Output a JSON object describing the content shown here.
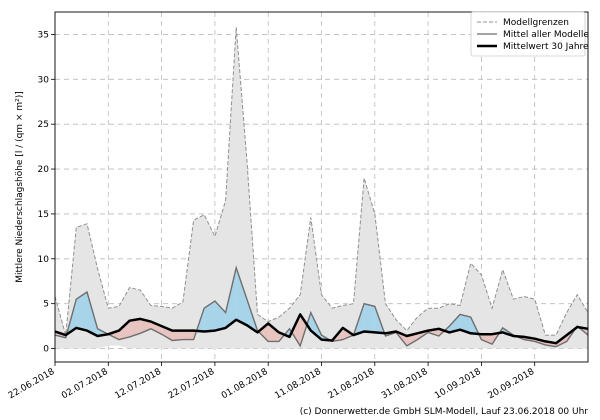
{
  "chart_data": {
    "type": "area",
    "ylabel": "Mittlere Niederschlagshöhe",
    "ylabel_unit": "[l / (qm × m²)]",
    "ylim": [
      -1.5,
      37.5
    ],
    "yticks": [
      0,
      5,
      10,
      15,
      20,
      25,
      30,
      35
    ],
    "grid": true,
    "legend_position": "top-right",
    "x_dates": [
      "22.06.2018",
      "24.06.2018",
      "26.06.2018",
      "28.06.2018",
      "30.06.2018",
      "02.07.2018",
      "04.07.2018",
      "06.07.2018",
      "08.07.2018",
      "10.07.2018",
      "12.07.2018",
      "14.07.2018",
      "16.07.2018",
      "18.07.2018",
      "20.07.2018",
      "22.07.2018",
      "24.07.2018",
      "26.07.2018",
      "28.07.2018",
      "30.07.2018",
      "01.08.2018",
      "03.08.2018",
      "05.08.2018",
      "07.08.2018",
      "09.08.2018",
      "11.08.2018",
      "13.08.2018",
      "15.08.2018",
      "17.08.2018",
      "19.08.2018",
      "21.08.2018",
      "23.08.2018",
      "25.08.2018",
      "27.08.2018",
      "29.08.2018",
      "31.08.2018",
      "02.09.2018",
      "04.09.2018",
      "06.09.2018",
      "08.09.2018",
      "10.09.2018",
      "12.09.2018",
      "14.09.2018",
      "16.09.2018",
      "18.09.2018",
      "20.09.2018",
      "22.09.2018",
      "24.09.2018",
      "26.09.2018",
      "28.09.2018",
      "30.09.2018"
    ],
    "xtick_labels": [
      "22.06.2018",
      "02.07.2018",
      "12.07.2018",
      "22.07.2018",
      "01.08.2018",
      "11.08.2018",
      "21.08.2018",
      "31.08.2018",
      "10.09.2018",
      "20.09.2018"
    ],
    "series": [
      {
        "name": "Modellgrenzen",
        "role": "upper",
        "values": [
          5.8,
          1.5,
          13.5,
          13.9,
          8.9,
          4.5,
          4.7,
          6.8,
          6.5,
          4.8,
          4.7,
          4.5,
          5.2,
          14.3,
          14.9,
          12.5,
          16.5,
          35.8,
          21.0,
          3.8,
          3.0,
          3.5,
          4.5,
          6.0,
          14.6,
          6.0,
          4.5,
          4.8,
          5.0,
          19.0,
          15.0,
          5.0,
          3.2,
          2.0,
          3.5,
          4.5,
          4.5,
          5.0,
          4.8,
          9.5,
          8.2,
          4.5,
          8.8,
          5.5,
          5.8,
          5.5,
          1.5,
          1.5,
          4.0,
          6.0,
          4.0
        ]
      },
      {
        "name": "Modellgrenzen",
        "role": "lower",
        "values": [
          0.0,
          0.0,
          0.0,
          0.0,
          0.0,
          0.3,
          0.3,
          0.0,
          0.0,
          0.0,
          0.0,
          0.0,
          0.0,
          0.0,
          0.0,
          0.0,
          0.0,
          0.0,
          0.0,
          0.0,
          0.0,
          0.0,
          0.0,
          0.0,
          0.0,
          0.0,
          0.0,
          0.0,
          0.0,
          0.0,
          0.0,
          0.0,
          0.0,
          0.0,
          0.0,
          0.0,
          0.0,
          0.0,
          0.0,
          0.0,
          0.0,
          0.0,
          0.0,
          0.0,
          0.0,
          0.0,
          0.0,
          0.0,
          0.0,
          0.0,
          0.0
        ]
      },
      {
        "name": "Mittel aller Modelle",
        "values": [
          1.5,
          1.2,
          5.5,
          6.3,
          2.2,
          1.6,
          1.0,
          1.3,
          1.7,
          2.2,
          1.6,
          0.9,
          1.0,
          1.0,
          4.5,
          5.3,
          4.0,
          9.0,
          5.5,
          2.0,
          0.8,
          0.8,
          2.2,
          0.3,
          4.0,
          1.5,
          0.8,
          1.0,
          1.5,
          5.0,
          4.7,
          1.4,
          1.8,
          0.3,
          1.0,
          1.8,
          1.4,
          2.5,
          3.8,
          3.5,
          1.0,
          0.5,
          2.3,
          1.5,
          1.0,
          0.8,
          0.4,
          0.2,
          0.8,
          2.5,
          1.5
        ]
      },
      {
        "name": "Mittelwert 30 Jahre",
        "values": [
          1.9,
          1.5,
          2.3,
          2.0,
          1.4,
          1.6,
          2.0,
          3.1,
          3.3,
          3.0,
          2.5,
          2.0,
          2.0,
          2.0,
          1.9,
          2.0,
          2.3,
          3.2,
          2.6,
          1.8,
          2.8,
          1.8,
          1.3,
          3.8,
          2.0,
          1.0,
          0.9,
          2.3,
          1.5,
          1.9,
          1.8,
          1.7,
          1.9,
          1.4,
          1.7,
          2.0,
          2.2,
          1.8,
          2.1,
          1.7,
          1.6,
          1.6,
          1.8,
          1.4,
          1.3,
          1.1,
          0.8,
          0.6,
          1.5,
          2.4,
          2.2
        ]
      }
    ],
    "fill_colors": {
      "envelope": "#e5e5e5",
      "above_normal": "#a8d4ea",
      "below_normal": "#e8c4c0"
    },
    "line_colors": {
      "bounds": "#909090",
      "mean": "#6e6e6e",
      "climatology": "#000000"
    }
  },
  "legend": {
    "items": [
      {
        "label": "Modellgrenzen",
        "style": "dashed"
      },
      {
        "label": "Mittel aller Modelle",
        "style": "solid-gray"
      },
      {
        "label": "Mittelwert 30 Jahre",
        "style": "solid-black-thick"
      }
    ]
  },
  "credit": "(c) Donnerwetter.de GmbH SLM-Modell, Lauf 23.06.2018 00 Uhr"
}
